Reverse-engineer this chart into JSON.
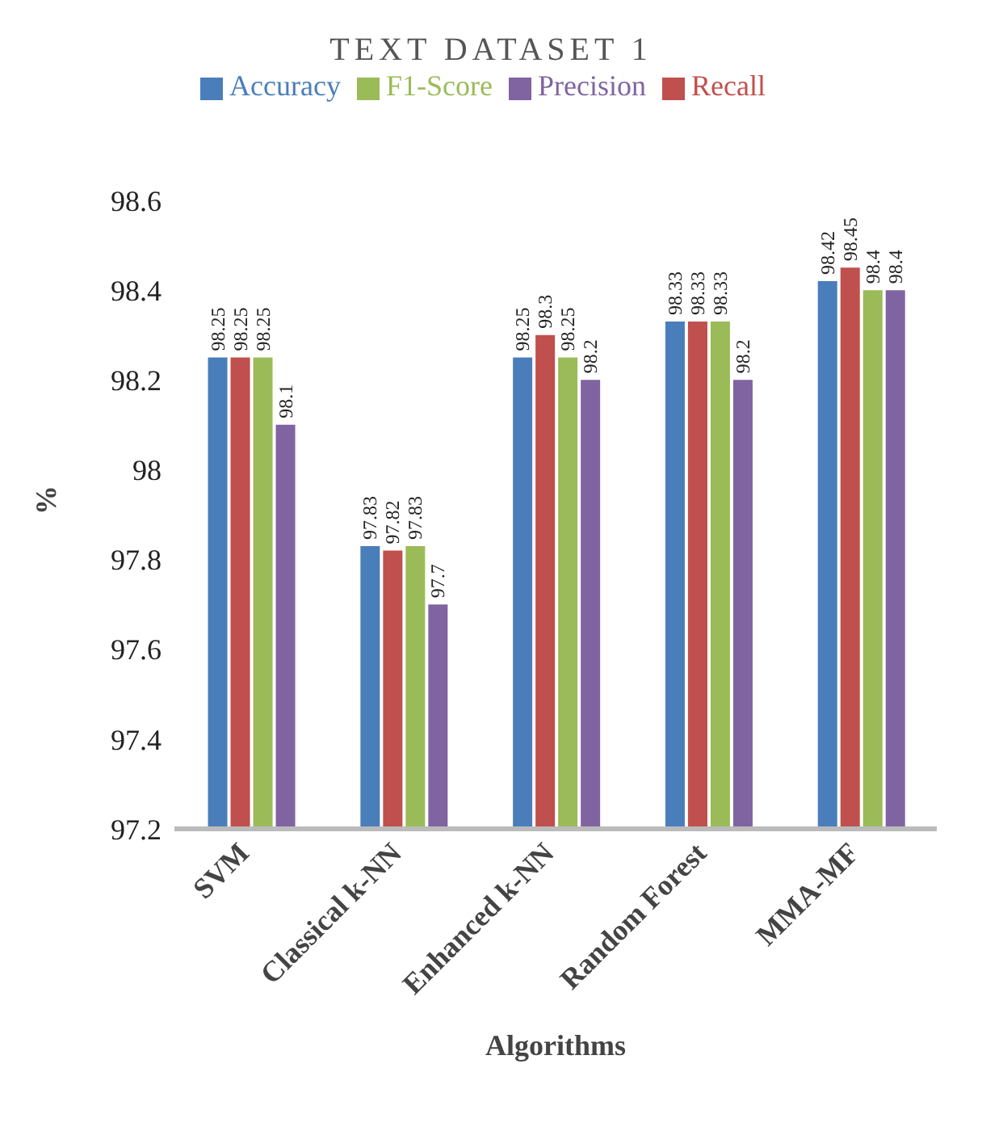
{
  "chart_data": {
    "type": "bar",
    "title": "TEXT DATASET 1",
    "xlabel": "Algorithms",
    "ylabel": "%",
    "categories": [
      "SVM",
      "Classical k-NN",
      "Enhanced k-NN",
      "Random Forest",
      "MMA-MF"
    ],
    "series": [
      {
        "name": "Accuracy",
        "color": "#4a7ebb",
        "values": [
          98.25,
          97.83,
          98.25,
          98.33,
          98.42
        ]
      },
      {
        "name": "Recall",
        "color": "#c0504d",
        "values": [
          98.25,
          97.82,
          98.3,
          98.33,
          98.45
        ]
      },
      {
        "name": "F1-Score",
        "color": "#9bbb59",
        "values": [
          98.25,
          97.83,
          98.25,
          98.33,
          98.4
        ]
      },
      {
        "name": "Precision",
        "color": "#8064a2",
        "values": [
          98.1,
          97.7,
          98.2,
          98.2,
          98.4
        ]
      }
    ],
    "ylim": [
      97.2,
      98.6
    ],
    "yticks": [
      97.2,
      97.4,
      97.6,
      97.8,
      98,
      98.2,
      98.4,
      98.6
    ],
    "grid": false,
    "legend": "top",
    "data_labels": true
  }
}
